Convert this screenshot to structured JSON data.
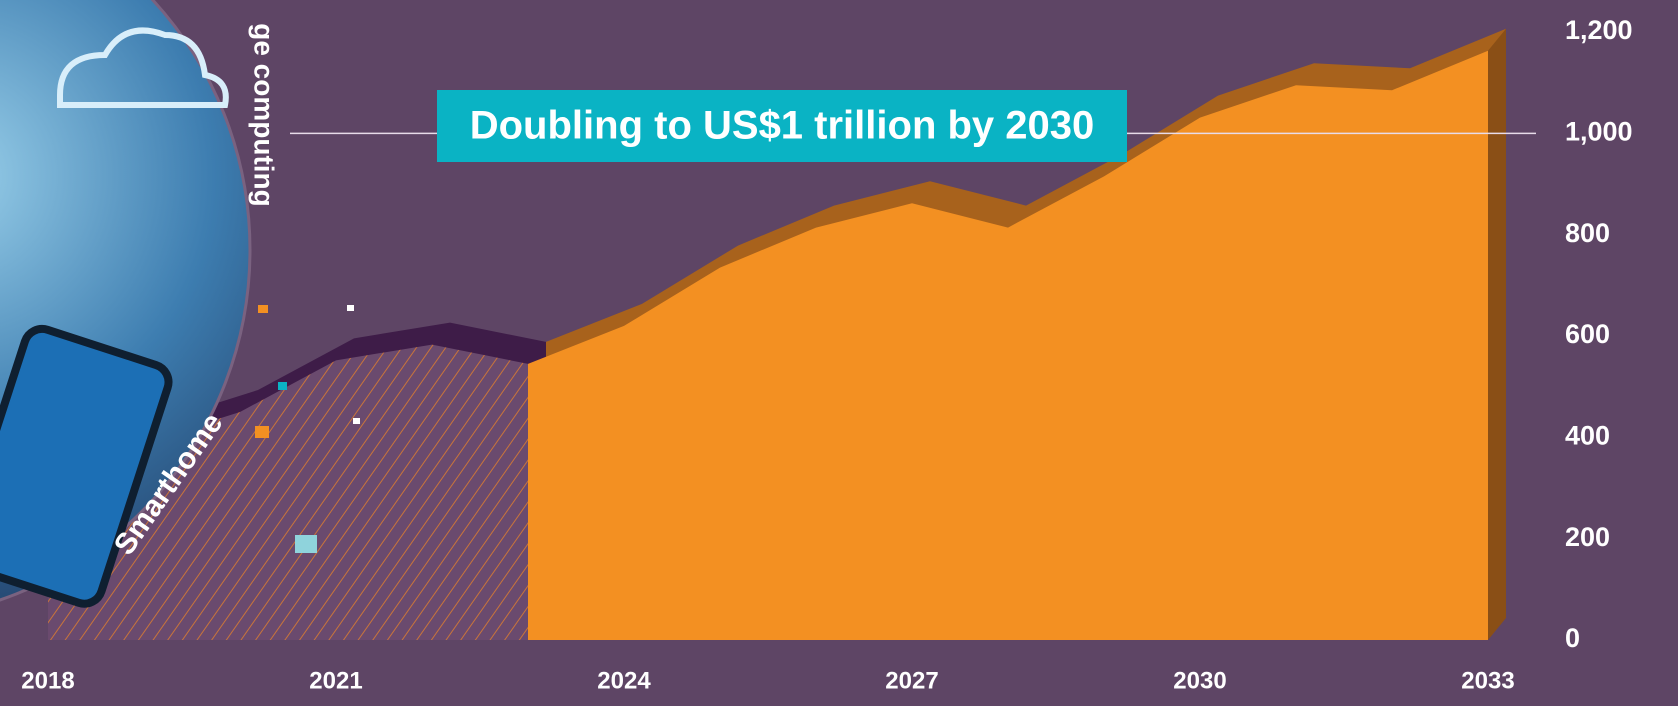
{
  "chart_data": {
    "type": "area",
    "title": "Doubling to US$1 trillion by 2030",
    "annotations": [
      "ge computing",
      "Smarthome"
    ],
    "x": [
      2018,
      2019,
      2020,
      2021,
      2022,
      2023,
      2024,
      2025,
      2026,
      2027,
      2028,
      2029,
      2030,
      2031,
      2032,
      2033
    ],
    "series": [
      {
        "color": "#f08a24",
        "values": [
          330,
          390,
          450,
          552,
          583,
          545,
          null,
          null,
          null,
          null,
          null,
          null,
          null,
          null,
          null,
          null
        ]
      },
      {
        "color": "#f39022",
        "values": [
          null,
          null,
          null,
          null,
          null,
          545,
          620,
          735,
          814,
          862,
          814,
          915,
          1031,
          1095,
          1085,
          1163
        ]
      }
    ],
    "xlim": [
      2018,
      2033
    ],
    "xticks": [
      2018,
      2021,
      2024,
      2027,
      2030,
      2033
    ],
    "ylim": [
      0,
      1200
    ],
    "yticks": [
      0,
      200,
      400,
      600,
      800,
      {
        "value": 1000,
        "label": "1,000"
      },
      {
        "value": 1200,
        "label": "1,200"
      }
    ]
  }
}
